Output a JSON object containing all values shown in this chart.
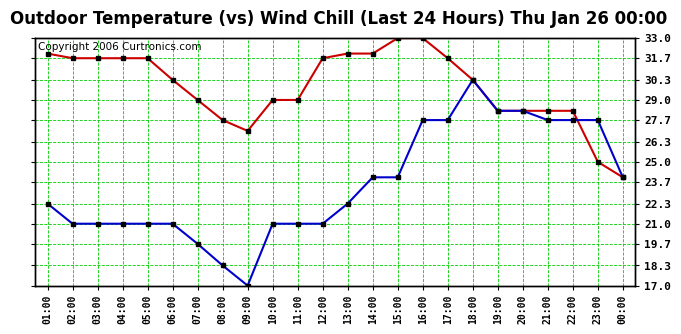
{
  "title": "Outdoor Temperature (vs) Wind Chill (Last 24 Hours) Thu Jan 26 00:00",
  "copyright": "Copyright 2006 Curtronics.com",
  "x_labels": [
    "01:00",
    "02:00",
    "03:00",
    "04:00",
    "05:00",
    "06:00",
    "07:00",
    "08:00",
    "09:00",
    "10:00",
    "11:00",
    "12:00",
    "13:00",
    "14:00",
    "15:00",
    "16:00",
    "17:00",
    "18:00",
    "19:00",
    "20:00",
    "21:00",
    "22:00",
    "23:00",
    "00:00"
  ],
  "y_ticks": [
    17.0,
    18.3,
    19.7,
    21.0,
    22.3,
    23.7,
    25.0,
    26.3,
    27.7,
    29.0,
    30.3,
    31.7,
    33.0
  ],
  "ylim": [
    17.0,
    33.0
  ],
  "temp_red": [
    32.0,
    31.7,
    31.7,
    31.7,
    31.7,
    30.3,
    29.0,
    27.7,
    27.0,
    29.0,
    29.0,
    31.7,
    32.0,
    32.0,
    33.0,
    33.0,
    31.7,
    30.3,
    28.3,
    28.3,
    28.3,
    28.3,
    25.0,
    24.0
  ],
  "wind_blue": [
    22.3,
    21.0,
    21.0,
    21.0,
    21.0,
    21.0,
    19.7,
    18.3,
    17.0,
    21.0,
    21.0,
    21.0,
    22.3,
    24.0,
    24.0,
    27.7,
    27.7,
    30.3,
    28.3,
    28.3,
    27.7,
    27.7,
    27.7,
    24.0
  ],
  "bg_color": "#ffffff",
  "plot_bg": "#ffffff",
  "grid_color": "#00cc00",
  "red_color": "#cc0000",
  "blue_color": "#0000cc",
  "title_fontsize": 12,
  "copyright_fontsize": 7.5
}
